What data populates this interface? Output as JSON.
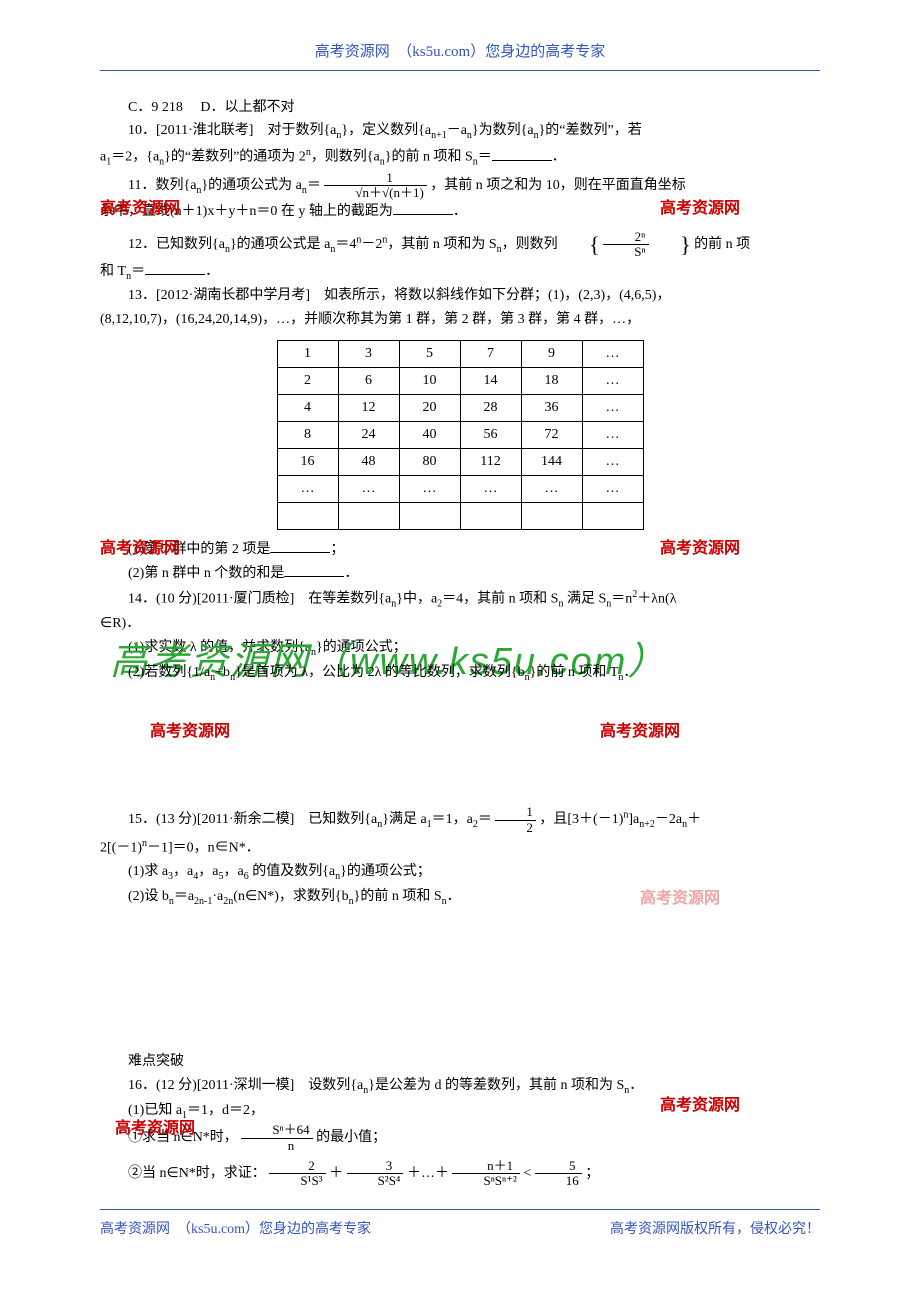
{
  "header": "高考资源网　（ks5u.com）您身边的高考专家",
  "footer_left": "高考资源网　（ks5u.com）您身边的高考专家",
  "footer_right": "高考资源网版权所有，侵权必究！",
  "watermark": "高考资源网",
  "big_wm": "高考资源网（www.ks5u.com）",
  "q9_c": "C．9 218",
  "q9_d": "D．以上都不对",
  "q10_a": "10．[2011·淮北联考]　对于数列{a",
  "q10_b": "}，定义数列{a",
  "q10_c": "－a",
  "q10_d": "}为数列{a",
  "q10_e": "}的“差数列”，若",
  "q10_line2a": "a",
  "q10_line2b": "＝2，{a",
  "q10_line2c": "}的“差数列”的通项为 2",
  "q10_line2d": "，则数列{a",
  "q10_line2e": "}的前 n 项和 S",
  "q10_line2f": "＝",
  "q10_line2g": "．",
  "q11_a": "11．数列{a",
  "q11_b": "}的通项公式为 a",
  "q11_c": "＝",
  "q11_frac_nu": "1",
  "q11_frac_de": "√n＋√(n＋1)",
  "q11_d": "，其前 n 项之和为 10，则在平面直角坐标",
  "q11_line2": "系中，直线(n＋1)x＋y＋n＝0 在 y 轴上的截距为",
  "q11_line2_end": "．",
  "q12_a": "12．已知数列{a",
  "q12_b": "}的通项公式是 a",
  "q12_c": "＝4",
  "q12_d": "－2",
  "q12_e": "，其前 n 项和为 S",
  "q12_f": "，则数列",
  "q12_brace_nu": "2ⁿ",
  "q12_brace_de": "Sⁿ",
  "q12_g": "的前 n 项",
  "q12_line2a": "和 T",
  "q12_line2b": "＝",
  "q12_line2c": "．",
  "q13_a": "13．[2012·湖南长郡中学月考]　如表所示，将数以斜线作如下分群；(1)，(2,3)，(4,6,5)，",
  "q13_b": "(8,12,10,7)，(16,24,20,14,9)，…，并顺次称其为第 1 群，第 2 群，第 3 群，第 4 群，…，",
  "table": [
    [
      "1",
      "3",
      "5",
      "7",
      "9",
      "…"
    ],
    [
      "2",
      "6",
      "10",
      "14",
      "18",
      "…"
    ],
    [
      "4",
      "12",
      "20",
      "28",
      "36",
      "…"
    ],
    [
      "8",
      "24",
      "40",
      "56",
      "72",
      "…"
    ],
    [
      "16",
      "48",
      "80",
      "112",
      "144",
      "…"
    ],
    [
      "…",
      "…",
      "…",
      "…",
      "…",
      "…"
    ],
    [
      "",
      "",
      "",
      "",
      "",
      ""
    ]
  ],
  "q13_s1": "(1)第 7 群中的第 2 项是",
  "q13_s1_end": "；",
  "q13_s2": "(2)第 n 群中 n 个数的和是",
  "q13_s2_end": "．",
  "q14_a": "14．(10 分)[2011·厦门质检]　在等差数列{a",
  "q14_b": "}中，a",
  "q14_c": "＝4，其前 n 项和 S",
  "q14_d": " 满足 S",
  "q14_e": "＝n",
  "q14_f": "＋λn(λ",
  "q14_g": "∈R)．",
  "q14_s1": "(1)求实数 λ 的值，并求数列{a",
  "q14_s1b": "}的通项公式；",
  "q14_s2": "(2)若数列",
  "q14_s2b": "是首项为 λ，公比为 2λ 的等比数列，求数列{b",
  "q14_s2c": "}的前 n 项和 T",
  "q14_s2d": "．",
  "q15_a": "15．(13 分)[2011·新余二模]　已知数列{a",
  "q15_b": "}满足 a",
  "q15_c": "＝1，a",
  "q15_d": "＝",
  "q15_frac_nu": "1",
  "q15_frac_de": "2",
  "q15_e": "，且[3＋(－1)",
  "q15_f": "]a",
  "q15_g": "－2a",
  "q15_h": "＋",
  "q15_line2": "2[(－1)",
  "q15_line2b": "－1]＝0，n∈N*．",
  "q15_s1": "(1)求 a",
  "q15_s1b": "，a",
  "q15_s1c": "，a",
  "q15_s1d": "，a",
  "q15_s1e": " 的值及数列{a",
  "q15_s1f": "}的通项公式；",
  "q15_s2": "(2)设 b",
  "q15_s2b": "＝a",
  "q15_s2c": "·a",
  "q15_s2d": "(n∈N*)，求数列{b",
  "q15_s2e": "}的前 n 项和 S",
  "q15_s2f": "．",
  "sec_hard": "难点突破",
  "q16_a": "16．(12 分)[2011·深圳一模]　设数列{a",
  "q16_b": "}是公差为 d 的等差数列，其前 n 项和为 S",
  "q16_c": "．",
  "q16_s1": "(1)已知 a",
  "q16_s1b": "＝1，d＝2，",
  "q16_i1a": "①求当 n∈N*时，",
  "q16_i1_nu": "Sⁿ＋64",
  "q16_i1_de": "n",
  "q16_i1b": "的最小值；",
  "q16_i2a": "②当 n∈N*时，求证：",
  "q16_i2_t1_nu": "2",
  "q16_i2_t1_de": "S¹S³",
  "q16_i2_p": "＋",
  "q16_i2_t2_nu": "3",
  "q16_i2_t2_de": "S²S⁴",
  "q16_i2_dots": "＋…＋",
  "q16_i2_tn_nu": "n＋1",
  "q16_i2_tn_de": "SⁿSⁿ⁺²",
  "q16_i2_lt": "<",
  "q16_i2_r_nu": "5",
  "q16_i2_r_de": "16",
  "q16_i2_end": "；"
}
